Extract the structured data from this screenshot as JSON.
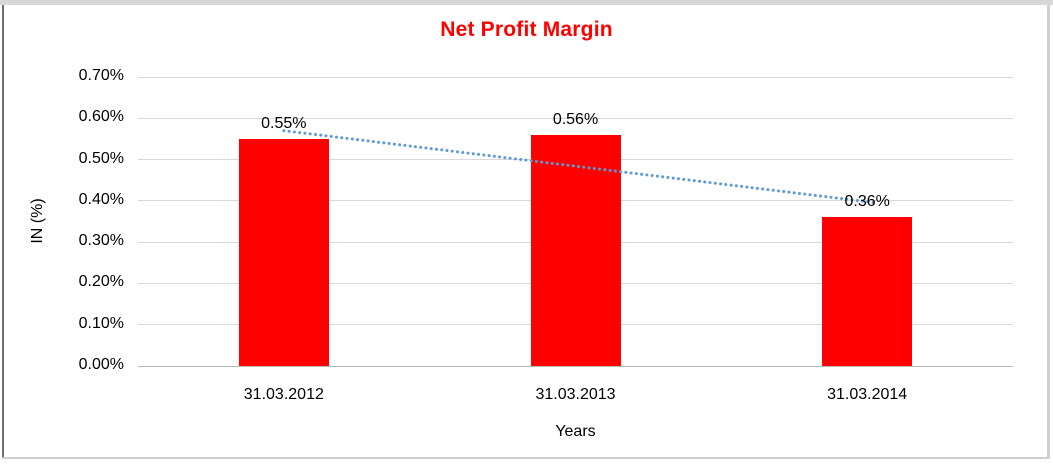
{
  "chart_data": {
    "type": "bar",
    "title": "Net Profit Margin",
    "title_color": "#FF0000",
    "categories": [
      "31.03.2012",
      "31.03.2013",
      "31.03.2014"
    ],
    "values": [
      0.55,
      0.56,
      0.36
    ],
    "value_labels": [
      "0.55%",
      "0.56%",
      "0.36%"
    ],
    "xlabel": "Years",
    "ylabel": "IN (%)",
    "ylim": [
      0,
      0.7
    ],
    "ytick_step": 0.1,
    "ytick_labels": [
      "0.00%",
      "0.10%",
      "0.20%",
      "0.30%",
      "0.40%",
      "0.50%",
      "0.60%",
      "0.70%"
    ],
    "grid": true,
    "gridline_color": "#d9d9d9",
    "axis_line_color": "#b7b7b7",
    "bar_color": "#FF0000",
    "legend": "none",
    "trendline": {
      "type": "linear",
      "style": "dotted",
      "color": "#5B9BD5",
      "start_value": 0.57,
      "end_value": 0.395
    }
  }
}
